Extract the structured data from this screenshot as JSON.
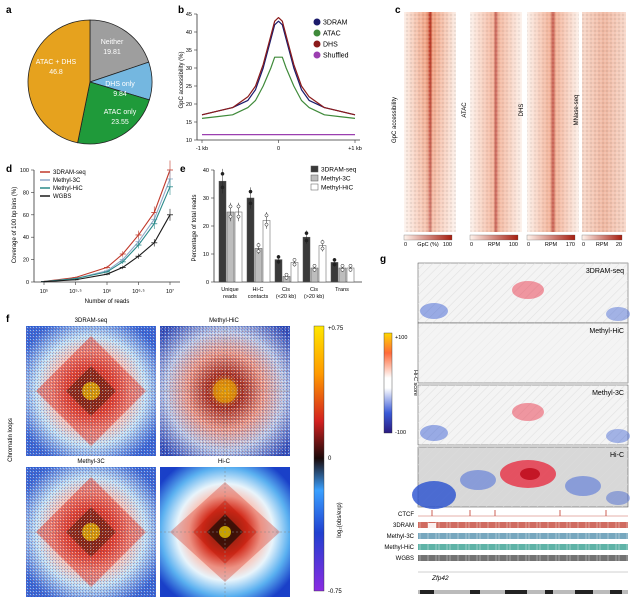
{
  "panels": {
    "a": {
      "label": "a",
      "slices": [
        {
          "name": "Neither",
          "value": "19.81",
          "color": "#9e9e9e"
        },
        {
          "name": "DHS only",
          "value": "9.84",
          "color": "#74b7e0"
        },
        {
          "name": "ATAC only",
          "value": "23.55",
          "color": "#1f9a3a"
        },
        {
          "name": "ATAC + DHS",
          "value": "46.8",
          "color": "#e6a21e"
        }
      ]
    },
    "b": {
      "label": "b",
      "ylabel": "GpC accessibility (%)",
      "xticks": [
        "-1 kb",
        "0",
        "+1 kb"
      ],
      "yticks": [
        "10",
        "15",
        "20",
        "25",
        "30",
        "35",
        "40",
        "45"
      ],
      "legend": [
        {
          "name": "3DRAM",
          "color": "#1b1b6b"
        },
        {
          "name": "ATAC",
          "color": "#3f8a3a"
        },
        {
          "name": "DHS",
          "color": "#8b1a1a"
        },
        {
          "name": "Shuffled",
          "color": "#9b3fb0"
        }
      ]
    },
    "c": {
      "label": "c",
      "ylabel": "GpC accessibility",
      "tracks": [
        {
          "name": "",
          "scale_min": "0",
          "scale_label": "GpC (%)",
          "scale_max": "100"
        },
        {
          "name": "ATAC",
          "scale_min": "0",
          "scale_label": "RPM",
          "scale_max": "100"
        },
        {
          "name": "DHS",
          "scale_min": "0",
          "scale_label": "RPM",
          "scale_max": "170"
        },
        {
          "name": "MNase-seq",
          "scale_min": "0",
          "scale_label": "RPM",
          "scale_max": "20"
        }
      ]
    },
    "d": {
      "label": "d",
      "ylabel": "Coverage of 100 bp bins (%)",
      "xlabel": "Number of reads",
      "yticks": [
        "0",
        "20",
        "40",
        "60",
        "80",
        "100"
      ],
      "xticks": [
        "10⁵",
        "10⁵·⁵",
        "10⁶",
        "10⁶·⁵",
        "10⁷"
      ],
      "legend": [
        {
          "name": "3DRAM-seq",
          "color": "#c0392b"
        },
        {
          "name": "Methyl-3C",
          "color": "#8fa8c8"
        },
        {
          "name": "Methyl-HiC",
          "color": "#2a8a8a"
        },
        {
          "name": "WGBS",
          "color": "#1a1a1a"
        }
      ]
    },
    "e": {
      "label": "e",
      "ylabel": "Percentage of total reads",
      "yticks": [
        "0",
        "10",
        "20",
        "30",
        "40"
      ],
      "categories": [
        "Unique reads",
        "Hi-C contacts",
        "Cis (<20 kb)",
        "Cis (>20 kb)",
        "Trans"
      ],
      "legend": [
        "3DRAM-seq",
        "Methyl-3C",
        "Methyl-HiC"
      ]
    },
    "f": {
      "label": "f",
      "ylabel": "Chromatin loops",
      "titles": [
        "3DRAM-seq",
        "Methyl-HiC",
        "Methyl-3C",
        "Hi-C"
      ],
      "colorbar_ticks": [
        "+0.75",
        "0",
        "-0.75"
      ],
      "colorbar_label": "log₂(obs/exp)"
    },
    "g": {
      "label": "g",
      "tracks": [
        "3DRAM-seq",
        "Methyl-HiC",
        "Methyl-3C",
        "Hi-C"
      ],
      "colorbar_ticks": [
        "+100",
        "-100"
      ],
      "colorbar_label": "Hi-C score",
      "bottom_tracks": [
        "CTCF",
        "3DRAM",
        "Methyl-3C",
        "Methyl-HiC",
        "WGBS"
      ],
      "gene": "Zfp42"
    }
  },
  "chart_data": [
    {
      "panel": "a",
      "type": "pie",
      "categories": [
        "Neither",
        "DHS only",
        "ATAC only",
        "ATAC + DHS"
      ],
      "values": [
        19.81,
        9.84,
        23.55,
        46.8
      ]
    },
    {
      "panel": "b",
      "type": "line",
      "ylabel": "GpC accessibility (%)",
      "ylim": [
        10,
        45
      ],
      "x": [
        -1000,
        -800,
        -600,
        -400,
        -300,
        -200,
        -100,
        -50,
        0,
        50,
        100,
        200,
        300,
        400,
        600,
        800,
        1000
      ],
      "series": [
        {
          "name": "3DRAM",
          "values": [
            17,
            18,
            19,
            21,
            24,
            30,
            38,
            42,
            43,
            42,
            38,
            30,
            24,
            21,
            19,
            18,
            17
          ]
        },
        {
          "name": "ATAC",
          "values": [
            16,
            16.5,
            17,
            19,
            21,
            25,
            30,
            33,
            33,
            33,
            30,
            25,
            21,
            19,
            17,
            16.5,
            16
          ]
        },
        {
          "name": "DHS",
          "values": [
            17,
            18,
            19,
            22,
            25,
            31,
            39,
            43,
            44,
            43,
            39,
            31,
            25,
            22,
            19,
            18,
            17
          ]
        },
        {
          "name": "Shuffled",
          "values": [
            11.5,
            11.5,
            11.5,
            11.5,
            11.5,
            11.5,
            11.5,
            11.5,
            11.5,
            11.5,
            11.5,
            11.5,
            11.5,
            11.5,
            11.5,
            11.5,
            11.5
          ]
        }
      ]
    },
    {
      "panel": "d",
      "type": "line",
      "xlabel": "Number of reads",
      "ylabel": "Coverage of 100 bp bins (%)",
      "ylim": [
        0,
        100
      ],
      "x": [
        5,
        5.5,
        6,
        6.25,
        6.5,
        6.75,
        7
      ],
      "series": [
        {
          "name": "3DRAM-seq",
          "values": [
            0.5,
            4,
            13,
            25,
            42,
            62,
            100
          ]
        },
        {
          "name": "Methyl-3C",
          "values": [
            0.4,
            3,
            10,
            20,
            36,
            56,
            92
          ]
        },
        {
          "name": "Methyl-HiC",
          "values": [
            0.4,
            3,
            9,
            18,
            33,
            52,
            85
          ]
        },
        {
          "name": "WGBS",
          "values": [
            0.3,
            2,
            7,
            13,
            23,
            35,
            60
          ]
        }
      ]
    },
    {
      "panel": "e",
      "type": "bar",
      "ylabel": "Percentage of total reads",
      "ylim": [
        0,
        40
      ],
      "categories": [
        "Unique reads",
        "Hi-C contacts",
        "Cis (<20 kb)",
        "Cis (>20 kb)",
        "Trans"
      ],
      "series": [
        {
          "name": "3DRAM-seq",
          "values": [
            36,
            30,
            8,
            16,
            7
          ]
        },
        {
          "name": "Methyl-3C",
          "values": [
            25,
            12,
            2,
            5,
            5
          ]
        },
        {
          "name": "Methyl-HiC",
          "values": [
            25,
            22,
            7,
            13,
            5
          ]
        }
      ]
    }
  ]
}
